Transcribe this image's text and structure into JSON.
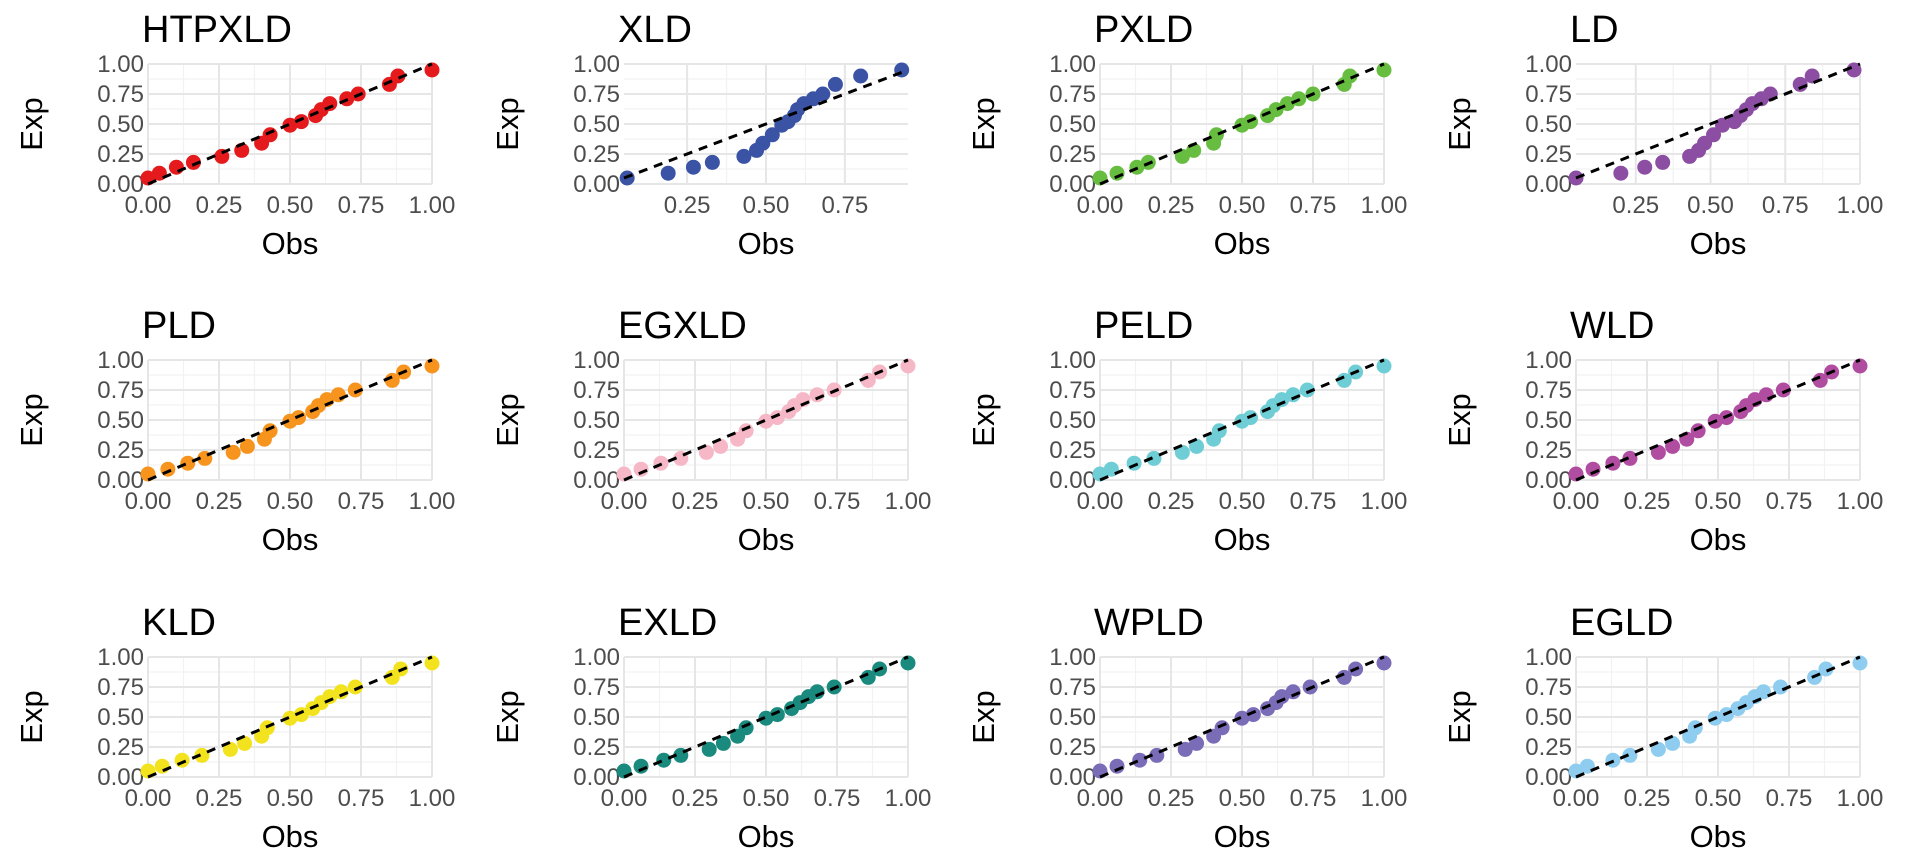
{
  "figure": {
    "type": "faceted scatter (PP-plot)",
    "x_label": "Obs",
    "y_label": "Exp",
    "ref_line": "dashed y = x",
    "ylim": [
      0,
      1
    ],
    "y_ticks": [
      0.0,
      0.25,
      0.5,
      0.75,
      1.0
    ],
    "y_tick_labels": [
      "0.00",
      "0.25",
      "0.50",
      "0.75",
      "1.00"
    ]
  },
  "chart_data": [
    {
      "type": "scatter",
      "title": "HTPXLD",
      "color": "#e41a1c",
      "xlabel": "Obs",
      "ylabel": "Exp",
      "xlim": [
        0,
        1
      ],
      "x_ticks": [
        0.0,
        0.25,
        0.5,
        0.75,
        1.0
      ],
      "x_tick_labels": [
        "0.00",
        "0.25",
        "0.50",
        "0.75",
        "1.00"
      ],
      "x": [
        0.0,
        0.04,
        0.1,
        0.16,
        0.26,
        0.33,
        0.4,
        0.43,
        0.5,
        0.54,
        0.59,
        0.61,
        0.64,
        0.7,
        0.74,
        0.85,
        0.88,
        1.0
      ],
      "y": [
        0.05,
        0.09,
        0.14,
        0.18,
        0.23,
        0.28,
        0.34,
        0.41,
        0.49,
        0.52,
        0.57,
        0.62,
        0.67,
        0.71,
        0.75,
        0.83,
        0.9,
        0.95
      ]
    },
    {
      "type": "scatter",
      "title": "XLD",
      "color": "#3a53a4",
      "xlabel": "Obs",
      "ylabel": "Exp",
      "xlim": [
        0.05,
        0.95
      ],
      "x_ticks": [
        0.25,
        0.5,
        0.75
      ],
      "x_tick_labels": [
        "0.25",
        "0.50",
        "0.75"
      ],
      "x": [
        0.06,
        0.19,
        0.27,
        0.33,
        0.43,
        0.47,
        0.49,
        0.52,
        0.55,
        0.57,
        0.59,
        0.6,
        0.62,
        0.65,
        0.68,
        0.72,
        0.8,
        0.93
      ],
      "y": [
        0.05,
        0.09,
        0.14,
        0.18,
        0.23,
        0.28,
        0.34,
        0.41,
        0.49,
        0.52,
        0.57,
        0.62,
        0.67,
        0.71,
        0.75,
        0.83,
        0.9,
        0.95
      ]
    },
    {
      "type": "scatter",
      "title": "PXLD",
      "color": "#66bd3f",
      "xlabel": "Obs",
      "ylabel": "Exp",
      "xlim": [
        0,
        1
      ],
      "x_ticks": [
        0.0,
        0.25,
        0.5,
        0.75,
        1.0
      ],
      "x_tick_labels": [
        "0.00",
        "0.25",
        "0.50",
        "0.75",
        "1.00"
      ],
      "x": [
        0.0,
        0.06,
        0.13,
        0.17,
        0.29,
        0.33,
        0.4,
        0.41,
        0.5,
        0.53,
        0.59,
        0.62,
        0.66,
        0.7,
        0.75,
        0.86,
        0.88,
        1.0
      ],
      "y": [
        0.05,
        0.09,
        0.14,
        0.18,
        0.23,
        0.28,
        0.34,
        0.41,
        0.49,
        0.52,
        0.57,
        0.62,
        0.67,
        0.71,
        0.75,
        0.83,
        0.9,
        0.95
      ]
    },
    {
      "type": "scatter",
      "title": "LD",
      "color": "#8b4ea2",
      "xlabel": "Obs",
      "ylabel": "Exp",
      "xlim": [
        0.05,
        1.0
      ],
      "x_ticks": [
        0.25,
        0.5,
        0.75,
        1.0
      ],
      "x_tick_labels": [
        "0.25",
        "0.50",
        "0.75",
        "1.00"
      ],
      "x": [
        0.05,
        0.2,
        0.28,
        0.34,
        0.43,
        0.46,
        0.48,
        0.51,
        0.54,
        0.58,
        0.6,
        0.62,
        0.64,
        0.67,
        0.7,
        0.8,
        0.84,
        0.98
      ],
      "y": [
        0.05,
        0.09,
        0.14,
        0.18,
        0.23,
        0.28,
        0.34,
        0.41,
        0.49,
        0.52,
        0.57,
        0.62,
        0.67,
        0.71,
        0.75,
        0.83,
        0.9,
        0.95
      ]
    },
    {
      "type": "scatter",
      "title": "PLD",
      "color": "#f7941d",
      "xlabel": "Obs",
      "ylabel": "Exp",
      "xlim": [
        0,
        1
      ],
      "x_ticks": [
        0.0,
        0.25,
        0.5,
        0.75,
        1.0
      ],
      "x_tick_labels": [
        "0.00",
        "0.25",
        "0.50",
        "0.75",
        "1.00"
      ],
      "x": [
        0.0,
        0.07,
        0.14,
        0.2,
        0.3,
        0.35,
        0.41,
        0.43,
        0.5,
        0.53,
        0.58,
        0.6,
        0.63,
        0.67,
        0.73,
        0.86,
        0.9,
        1.0
      ],
      "y": [
        0.05,
        0.09,
        0.14,
        0.18,
        0.23,
        0.28,
        0.34,
        0.41,
        0.49,
        0.52,
        0.57,
        0.62,
        0.67,
        0.71,
        0.75,
        0.83,
        0.9,
        0.95
      ]
    },
    {
      "type": "scatter",
      "title": "EGXLD",
      "color": "#f6b8c6",
      "xlabel": "Obs",
      "ylabel": "Exp",
      "xlim": [
        0,
        1
      ],
      "x_ticks": [
        0.0,
        0.25,
        0.5,
        0.75,
        1.0
      ],
      "x_tick_labels": [
        "0.00",
        "0.25",
        "0.50",
        "0.75",
        "1.00"
      ],
      "x": [
        0.0,
        0.06,
        0.13,
        0.2,
        0.29,
        0.34,
        0.4,
        0.43,
        0.5,
        0.54,
        0.58,
        0.6,
        0.63,
        0.68,
        0.74,
        0.86,
        0.9,
        1.0
      ],
      "y": [
        0.05,
        0.09,
        0.14,
        0.18,
        0.23,
        0.28,
        0.34,
        0.41,
        0.49,
        0.52,
        0.57,
        0.62,
        0.67,
        0.71,
        0.75,
        0.83,
        0.9,
        0.95
      ]
    },
    {
      "type": "scatter",
      "title": "PELD",
      "color": "#6fcdd6",
      "xlabel": "Obs",
      "ylabel": "Exp",
      "xlim": [
        0,
        1
      ],
      "x_ticks": [
        0.0,
        0.25,
        0.5,
        0.75,
        1.0
      ],
      "x_tick_labels": [
        "0.00",
        "0.25",
        "0.50",
        "0.75",
        "1.00"
      ],
      "x": [
        0.0,
        0.04,
        0.12,
        0.19,
        0.29,
        0.34,
        0.4,
        0.42,
        0.5,
        0.53,
        0.59,
        0.61,
        0.64,
        0.68,
        0.73,
        0.86,
        0.9,
        1.0
      ],
      "y": [
        0.05,
        0.09,
        0.14,
        0.18,
        0.23,
        0.28,
        0.34,
        0.41,
        0.49,
        0.52,
        0.57,
        0.62,
        0.67,
        0.71,
        0.75,
        0.83,
        0.9,
        0.95
      ]
    },
    {
      "type": "scatter",
      "title": "WLD",
      "color": "#b14da1",
      "xlabel": "Obs",
      "ylabel": "Exp",
      "xlim": [
        0,
        1
      ],
      "x_ticks": [
        0.0,
        0.25,
        0.5,
        0.75,
        1.0
      ],
      "x_tick_labels": [
        "0.00",
        "0.25",
        "0.50",
        "0.75",
        "1.00"
      ],
      "x": [
        0.0,
        0.06,
        0.13,
        0.19,
        0.29,
        0.34,
        0.39,
        0.43,
        0.49,
        0.53,
        0.58,
        0.6,
        0.63,
        0.67,
        0.73,
        0.86,
        0.9,
        1.0
      ],
      "y": [
        0.05,
        0.09,
        0.14,
        0.18,
        0.23,
        0.28,
        0.34,
        0.41,
        0.49,
        0.52,
        0.57,
        0.62,
        0.67,
        0.71,
        0.75,
        0.83,
        0.9,
        0.95
      ]
    },
    {
      "type": "scatter",
      "title": "KLD",
      "color": "#f3e31f",
      "xlabel": "Obs",
      "ylabel": "Exp",
      "xlim": [
        0,
        1
      ],
      "x_ticks": [
        0.0,
        0.25,
        0.5,
        0.75,
        1.0
      ],
      "x_tick_labels": [
        "0.00",
        "0.25",
        "0.50",
        "0.75",
        "1.00"
      ],
      "x": [
        0.0,
        0.05,
        0.12,
        0.19,
        0.29,
        0.34,
        0.4,
        0.42,
        0.5,
        0.54,
        0.58,
        0.61,
        0.64,
        0.68,
        0.73,
        0.86,
        0.89,
        1.0
      ],
      "y": [
        0.05,
        0.09,
        0.14,
        0.18,
        0.23,
        0.28,
        0.34,
        0.41,
        0.49,
        0.52,
        0.57,
        0.62,
        0.67,
        0.71,
        0.75,
        0.83,
        0.9,
        0.95
      ]
    },
    {
      "type": "scatter",
      "title": "EXLD",
      "color": "#1a8a7e",
      "xlabel": "Obs",
      "ylabel": "Exp",
      "xlim": [
        0,
        1
      ],
      "x_ticks": [
        0.0,
        0.25,
        0.5,
        0.75,
        1.0
      ],
      "x_tick_labels": [
        "0.00",
        "0.25",
        "0.50",
        "0.75",
        "1.00"
      ],
      "x": [
        0.0,
        0.06,
        0.14,
        0.2,
        0.3,
        0.35,
        0.4,
        0.43,
        0.5,
        0.54,
        0.59,
        0.62,
        0.65,
        0.68,
        0.74,
        0.86,
        0.9,
        1.0
      ],
      "y": [
        0.05,
        0.09,
        0.14,
        0.18,
        0.23,
        0.28,
        0.34,
        0.41,
        0.49,
        0.52,
        0.57,
        0.62,
        0.67,
        0.71,
        0.75,
        0.83,
        0.9,
        0.95
      ]
    },
    {
      "type": "scatter",
      "title": "WPLD",
      "color": "#7b6cb8",
      "xlabel": "Obs",
      "ylabel": "Exp",
      "xlim": [
        0,
        1
      ],
      "x_ticks": [
        0.0,
        0.25,
        0.5,
        0.75,
        1.0
      ],
      "x_tick_labels": [
        "0.00",
        "0.25",
        "0.50",
        "0.75",
        "1.00"
      ],
      "x": [
        0.0,
        0.06,
        0.14,
        0.2,
        0.3,
        0.34,
        0.4,
        0.43,
        0.5,
        0.54,
        0.59,
        0.62,
        0.64,
        0.68,
        0.74,
        0.86,
        0.9,
        1.0
      ],
      "y": [
        0.05,
        0.09,
        0.14,
        0.18,
        0.23,
        0.28,
        0.34,
        0.41,
        0.49,
        0.52,
        0.57,
        0.62,
        0.67,
        0.71,
        0.75,
        0.83,
        0.9,
        0.95
      ]
    },
    {
      "type": "scatter",
      "title": "EGLD",
      "color": "#8ecdef",
      "xlabel": "Obs",
      "ylabel": "Exp",
      "xlim": [
        0,
        1
      ],
      "x_ticks": [
        0.0,
        0.25,
        0.5,
        0.75,
        1.0
      ],
      "x_tick_labels": [
        "0.00",
        "0.25",
        "0.50",
        "0.75",
        "1.00"
      ],
      "x": [
        0.0,
        0.04,
        0.13,
        0.19,
        0.29,
        0.34,
        0.4,
        0.42,
        0.49,
        0.53,
        0.57,
        0.6,
        0.63,
        0.66,
        0.72,
        0.84,
        0.88,
        1.0
      ],
      "y": [
        0.05,
        0.09,
        0.14,
        0.18,
        0.23,
        0.28,
        0.34,
        0.41,
        0.49,
        0.52,
        0.57,
        0.62,
        0.67,
        0.71,
        0.75,
        0.83,
        0.9,
        0.95
      ]
    }
  ]
}
